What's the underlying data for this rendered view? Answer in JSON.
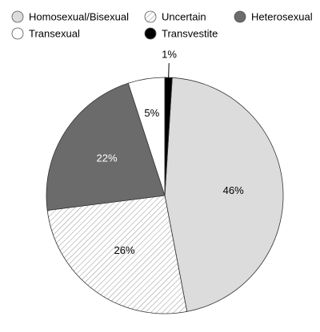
{
  "chart_data": {
    "type": "pie",
    "categories": [
      "Homosexual/Bisexual",
      "Uncertain",
      "Heterosexual",
      "Transexual",
      "Transvestite"
    ],
    "values": [
      46,
      26,
      22,
      5,
      1
    ],
    "value_labels": [
      "46%",
      "26%",
      "22%",
      "5%",
      "1%"
    ],
    "colors": [
      "#dcdcdc",
      "#ffffff",
      "#6b6b6b",
      "#ffffff",
      "#000000"
    ],
    "hatched": [
      "Uncertain"
    ],
    "label_colors": [
      "#000000",
      "#000000",
      "#ffffff",
      "#000000",
      "#000000"
    ],
    "legend": "top"
  }
}
